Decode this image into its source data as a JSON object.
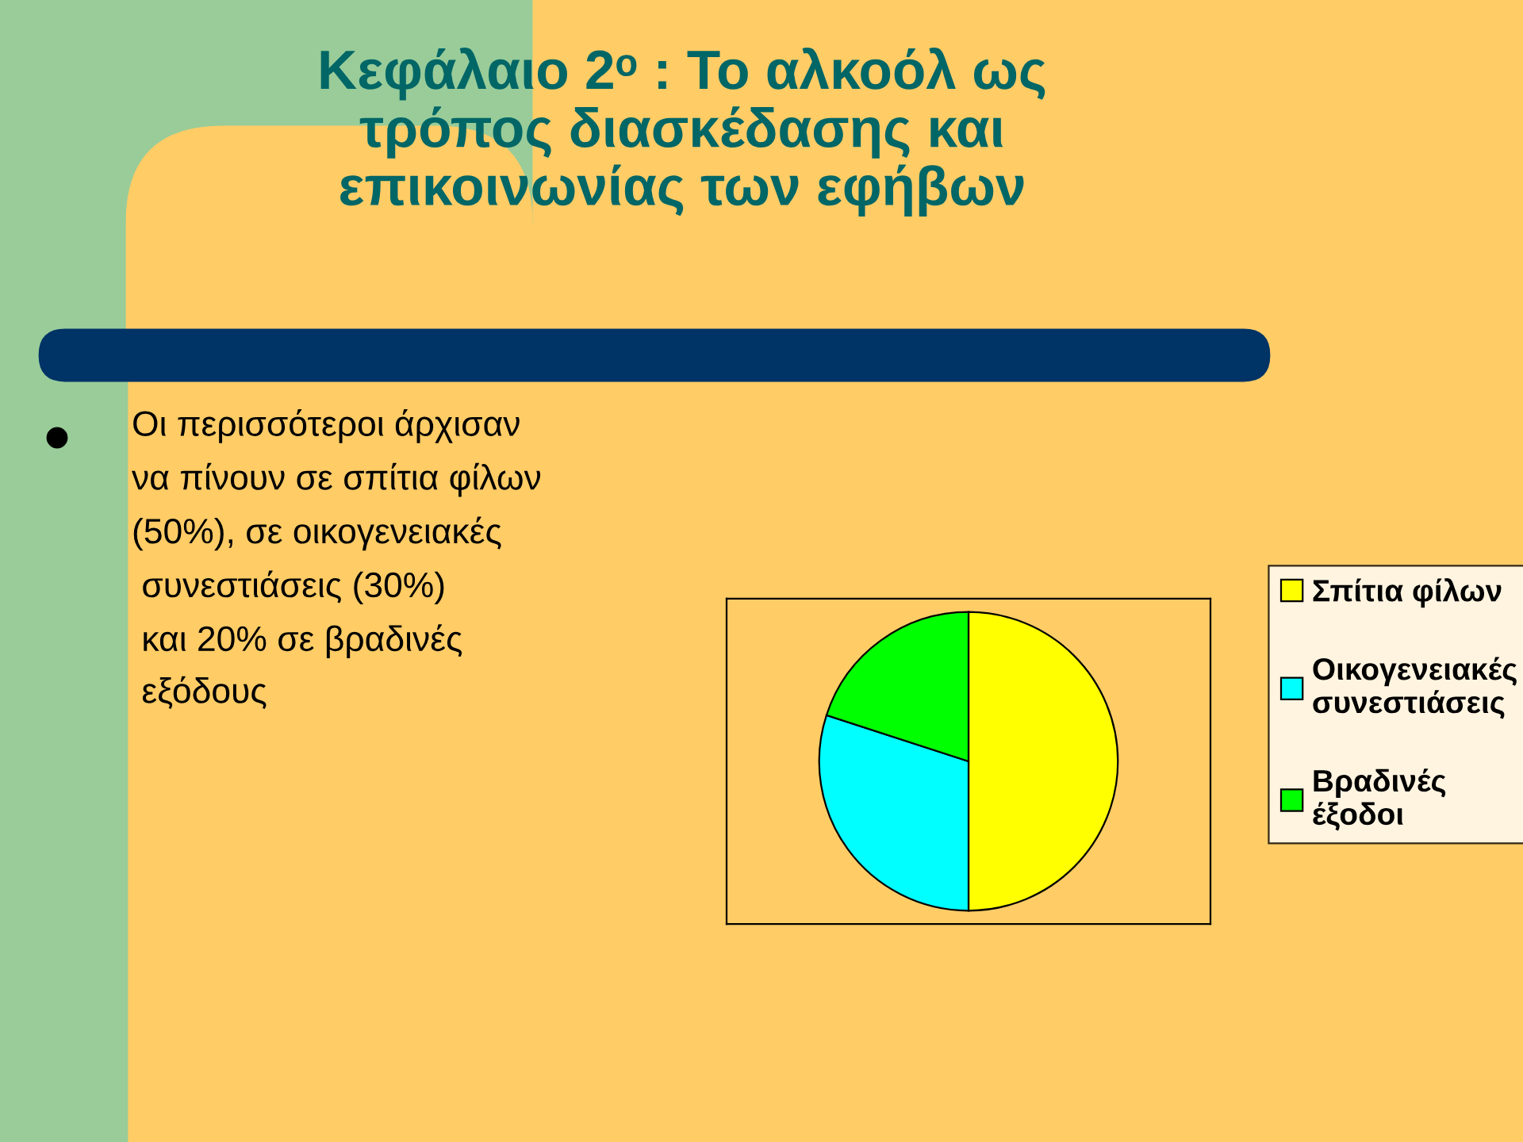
{
  "chart_data": {
    "type": "pie",
    "title": "Κεφάλαιο 2ᵒ : Το αλκοόλ ως\nτρόπος διασκέδασης και\nεπικοινωνίας των εφήβων",
    "annotations": [
      "Οι περισσότεροι άρχισαν\nνα πίνουν σε σπίτια φίλων\n(50%), σε οικογενειακές\n συνεστιάσεις (30%)\n και 20% σε βραδινές\n εξόδους"
    ],
    "categories": [
      "Σπίτια φίλων",
      "Οικογενειακές\nσυνεστιάσεις",
      "Βραδινές\nέξοδοι"
    ],
    "values": [
      50,
      30,
      20
    ],
    "colors": [
      "#ffff00",
      "#00ffff",
      "#00ff00"
    ],
    "legend": "right"
  }
}
